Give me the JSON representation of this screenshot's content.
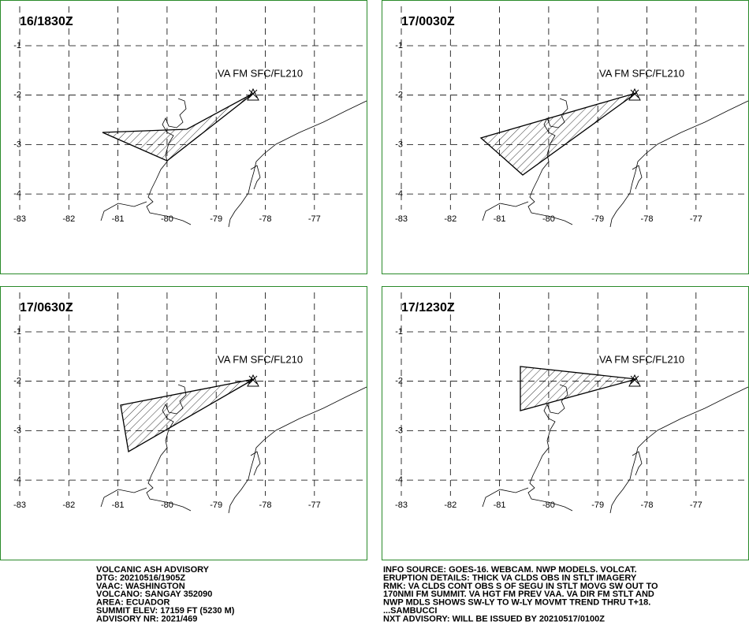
{
  "panels": [
    {
      "time": "16/1830Z",
      "annotation": "VA FM SFC/FL210"
    },
    {
      "time": "17/0030Z",
      "annotation": "VA FM SFC/FL210"
    },
    {
      "time": "17/0630Z",
      "annotation": "VA FM SFC/FL210"
    },
    {
      "time": "17/1230Z",
      "annotation": "VA FM SFC/FL210"
    }
  ],
  "lon_ticks": [
    -83,
    -82,
    -81,
    -80,
    -79,
    -78,
    -77
  ],
  "lat_ticks": [
    -1,
    -2,
    -3,
    -4
  ],
  "advisory_left": [
    "VOLCANIC ASH ADVISORY",
    "DTG: 20210516/1905Z",
    "VAAC: WASHINGTON",
    "VOLCANO: SANGAY 352090",
    "AREA: ECUADOR",
    "SUMMIT ELEV: 17159 FT (5230 M)",
    "ADVISORY NR: 2021/469"
  ],
  "advisory_right": [
    "INFO SOURCE: GOES-16. WEBCAM. NWP MODELS. VOLCAT.",
    "ERUPTION DETAILS: THICK VA CLDS OBS IN STLT IMAGERY",
    "RMK: VA CLDS CONT OBS S OF SEGU IN STLT MOVG SW OUT TO",
    "170NMI FM SUMMIT. VA HGT FM PREV VAA. VA DIR FM STLT AND",
    "NWP MDLS SHOWS SW-LY TO W-LY MOVMT TREND THRU T+18.",
    "...SAMBUCCI",
    "NXT ADVISORY: WILL BE ISSUED BY 20210517/0100Z"
  ]
}
